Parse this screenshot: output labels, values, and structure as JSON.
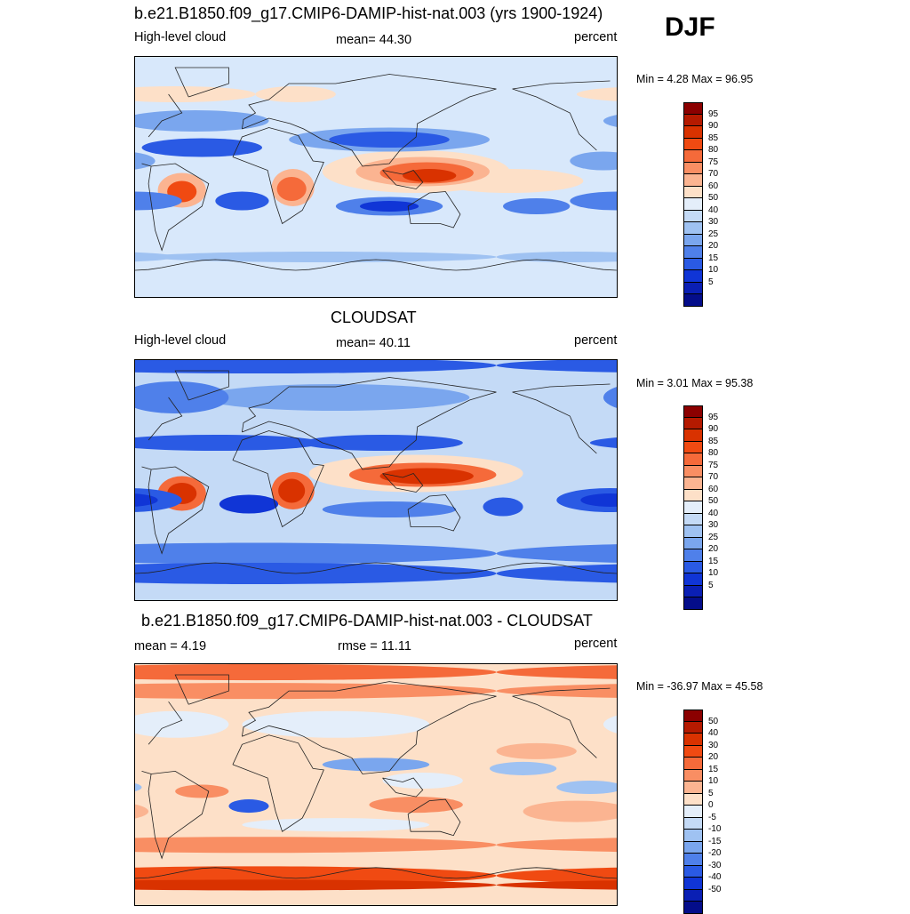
{
  "season": "DJF",
  "panels": [
    {
      "title": "b.e21.B1850.f09_g17.CMIP6-DAMIP-hist-nat.003 (yrs 1900-1924)",
      "left_label": "High-level cloud",
      "center_label": "mean=  44.30",
      "units": "percent",
      "minmax": "Min =   4.28 Max =  96.95",
      "colorbar": {
        "colors": [
          "#8b0000",
          "#b51a00",
          "#d93200",
          "#f04a12",
          "#f56a3a",
          "#f98e63",
          "#fbb491",
          "#fde0c8",
          "#e4eefa",
          "#c4daf6",
          "#9fc2f2",
          "#7aa6ee",
          "#4f80ea",
          "#2a5ae4",
          "#1035d6",
          "#0a1fb4",
          "#040d8a"
        ],
        "labels": [
          "95",
          "90",
          "85",
          "80",
          "75",
          "70",
          "60",
          "50",
          "40",
          "30",
          "25",
          "20",
          "15",
          "10",
          "5"
        ]
      },
      "field": {
        "background": "#d8e8fb",
        "features": [
          {
            "color": "#fde0c8",
            "shape": "ellipse",
            "center": [
              30,
              62
            ],
            "radius": [
              30,
              6
            ]
          },
          {
            "color": "#fde0c8",
            "shape": "ellipse",
            "center": [
              -60,
              62
            ],
            "radius": [
              60,
              6
            ]
          },
          {
            "color": "#fde0c8",
            "shape": "ellipse",
            "center": [
              -170,
              -3
            ],
            "radius": [
              55,
              9
            ]
          },
          {
            "color": "#fde0c8",
            "shape": "ellipse",
            "center": [
              120,
              4
            ],
            "radius": [
              70,
              16
            ]
          },
          {
            "color": "#fbb491",
            "shape": "ellipse",
            "center": [
              125,
              4
            ],
            "radius": [
              50,
              11
            ]
          },
          {
            "color": "#f56a3a",
            "shape": "ellipse",
            "center": [
              128,
              3
            ],
            "radius": [
              35,
              8
            ]
          },
          {
            "color": "#d93200",
            "shape": "ellipse",
            "center": [
              130,
              1
            ],
            "radius": [
              20,
              5
            ]
          },
          {
            "color": "#fbb491",
            "shape": "ellipse",
            "center": [
              28,
              -8
            ],
            "radius": [
              16,
              14
            ]
          },
          {
            "color": "#f56a3a",
            "shape": "ellipse",
            "center": [
              27,
              -9
            ],
            "radius": [
              11,
              9
            ]
          },
          {
            "color": "#fbb491",
            "shape": "ellipse",
            "center": [
              -55,
              -10
            ],
            "radius": [
              18,
              13
            ]
          },
          {
            "color": "#f04a12",
            "shape": "ellipse",
            "center": [
              -55,
              -11
            ],
            "radius": [
              11,
              8
            ]
          },
          {
            "color": "#7aa6ee",
            "shape": "ellipse",
            "center": [
              100,
              28
            ],
            "radius": [
              75,
              9
            ]
          },
          {
            "color": "#2a5ae4",
            "shape": "ellipse",
            "center": [
              100,
              28
            ],
            "radius": [
              45,
              6
            ]
          },
          {
            "color": "#7aa6ee",
            "shape": "ellipse",
            "center": [
              -45,
              42
            ],
            "radius": [
              55,
              8
            ]
          },
          {
            "color": "#2a5ae4",
            "shape": "ellipse",
            "center": [
              -40,
              22
            ],
            "radius": [
              45,
              7
            ]
          },
          {
            "color": "#7aa6ee",
            "shape": "ellipse",
            "center": [
              -100,
              12
            ],
            "radius": [
              25,
              7
            ]
          },
          {
            "color": "#4f80ea",
            "shape": "ellipse",
            "center": [
              100,
              -22
            ],
            "radius": [
              40,
              7
            ]
          },
          {
            "color": "#1035d6",
            "shape": "ellipse",
            "center": [
              100,
              -22
            ],
            "radius": [
              22,
              4
            ]
          },
          {
            "color": "#4f80ea",
            "shape": "ellipse",
            "center": [
              -90,
              -18
            ],
            "radius": [
              35,
              7
            ]
          },
          {
            "color": "#2a5ae4",
            "shape": "ellipse",
            "center": [
              -10,
              -18
            ],
            "radius": [
              20,
              7
            ]
          },
          {
            "color": "#4f80ea",
            "shape": "ellipse",
            "center": [
              -150,
              -22
            ],
            "radius": [
              25,
              6
            ]
          },
          {
            "color": "#9fc2f2",
            "shape": "ellipse",
            "center": [
              50,
              -60
            ],
            "radius": [
              130,
              4
            ]
          },
          {
            "color": "#9fc2f2",
            "shape": "ellipse",
            "center": [
              -120,
              -60
            ],
            "radius": [
              60,
              4
            ]
          }
        ]
      }
    },
    {
      "title": "CLOUDSAT",
      "left_label": "High-level cloud",
      "center_label": "mean=  40.11",
      "units": "percent",
      "minmax": "Min =   3.01 Max =  95.38",
      "colorbar": {
        "colors": [
          "#8b0000",
          "#b51a00",
          "#d93200",
          "#f04a12",
          "#f56a3a",
          "#f98e63",
          "#fbb491",
          "#fde0c8",
          "#e4eefa",
          "#c4daf6",
          "#9fc2f2",
          "#7aa6ee",
          "#4f80ea",
          "#2a5ae4",
          "#1035d6",
          "#0a1fb4",
          "#040d8a"
        ],
        "labels": [
          "95",
          "90",
          "85",
          "80",
          "75",
          "70",
          "60",
          "50",
          "40",
          "30",
          "25",
          "20",
          "15",
          "10",
          "5"
        ]
      },
      "field": {
        "background": "#c4daf6",
        "features": [
          {
            "color": "#2a5ae4",
            "shape": "ellipse",
            "center": [
              0,
              86
            ],
            "radius": [
              180,
              6
            ]
          },
          {
            "color": "#7aa6ee",
            "shape": "ellipse",
            "center": [
              60,
              62
            ],
            "radius": [
              100,
              10
            ]
          },
          {
            "color": "#4f80ea",
            "shape": "ellipse",
            "center": [
              -60,
              62
            ],
            "radius": [
              40,
              12
            ]
          },
          {
            "color": "#2a5ae4",
            "shape": "ellipse",
            "center": [
              95,
              28
            ],
            "radius": [
              60,
              6
            ]
          },
          {
            "color": "#2a5ae4",
            "shape": "ellipse",
            "center": [
              -30,
              28
            ],
            "radius": [
              80,
              6
            ]
          },
          {
            "color": "#fde0c8",
            "shape": "ellipse",
            "center": [
              120,
              5
            ],
            "radius": [
              80,
              14
            ]
          },
          {
            "color": "#f56a3a",
            "shape": "ellipse",
            "center": [
              125,
              4
            ],
            "radius": [
              55,
              9
            ]
          },
          {
            "color": "#d93200",
            "shape": "ellipse",
            "center": [
              128,
              3
            ],
            "radius": [
              35,
              6
            ]
          },
          {
            "color": "#f56a3a",
            "shape": "ellipse",
            "center": [
              28,
              -8
            ],
            "radius": [
              16,
              14
            ]
          },
          {
            "color": "#d93200",
            "shape": "ellipse",
            "center": [
              27,
              -8
            ],
            "radius": [
              10,
              9
            ]
          },
          {
            "color": "#f56a3a",
            "shape": "ellipse",
            "center": [
              -55,
              -10
            ],
            "radius": [
              18,
              13
            ]
          },
          {
            "color": "#d93200",
            "shape": "ellipse",
            "center": [
              -55,
              -10
            ],
            "radius": [
              11,
              8
            ]
          },
          {
            "color": "#4f80ea",
            "shape": "ellipse",
            "center": [
              100,
              -22
            ],
            "radius": [
              50,
              6
            ]
          },
          {
            "color": "#2a5ae4",
            "shape": "ellipse",
            "center": [
              -95,
              -15
            ],
            "radius": [
              40,
              9
            ]
          },
          {
            "color": "#1035d6",
            "shape": "ellipse",
            "center": [
              -95,
              -15
            ],
            "radius": [
              22,
              5
            ]
          },
          {
            "color": "#1035d6",
            "shape": "ellipse",
            "center": [
              -5,
              -18
            ],
            "radius": [
              22,
              7
            ]
          },
          {
            "color": "#2a5ae4",
            "shape": "ellipse",
            "center": [
              -175,
              -20
            ],
            "radius": [
              15,
              7
            ]
          },
          {
            "color": "#4f80ea",
            "shape": "ellipse",
            "center": [
              0,
              -55
            ],
            "radius": [
              180,
              8
            ]
          },
          {
            "color": "#2a5ae4",
            "shape": "ellipse",
            "center": [
              0,
              -70
            ],
            "radius": [
              180,
              8
            ]
          }
        ]
      }
    },
    {
      "title": "b.e21.B1850.f09_g17.CMIP6-DAMIP-hist-nat.003 - CLOUDSAT",
      "left_label": "mean =   4.19",
      "center_label": "rmse =  11.11",
      "units": "percent",
      "minmax": "Min = -36.97 Max =  45.58",
      "colorbar": {
        "colors": [
          "#8b0000",
          "#b51a00",
          "#d93200",
          "#f04a12",
          "#f56a3a",
          "#f98e63",
          "#fbb491",
          "#fde0c8",
          "#e4eefa",
          "#c4daf6",
          "#9fc2f2",
          "#7aa6ee",
          "#4f80ea",
          "#2a5ae4",
          "#1035d6",
          "#0a1fb4",
          "#040d8a"
        ],
        "labels": [
          "50",
          "40",
          "30",
          "20",
          "15",
          "10",
          "5",
          "0",
          "-5",
          "-10",
          "-15",
          "-20",
          "-30",
          "-40",
          "-50"
        ]
      },
      "field": {
        "background": "#fde0c8",
        "features": [
          {
            "color": "#f56a3a",
            "shape": "ellipse",
            "center": [
              0,
              84
            ],
            "radius": [
              180,
              6
            ]
          },
          {
            "color": "#f98e63",
            "shape": "ellipse",
            "center": [
              0,
              70
            ],
            "radius": [
              180,
              6
            ]
          },
          {
            "color": "#e4eefa",
            "shape": "ellipse",
            "center": [
              60,
              45
            ],
            "radius": [
              70,
              10
            ]
          },
          {
            "color": "#e4eefa",
            "shape": "ellipse",
            "center": [
              -60,
              45
            ],
            "radius": [
              40,
              10
            ]
          },
          {
            "color": "#9fc2f2",
            "shape": "ellipse",
            "center": [
              -160,
              12
            ],
            "radius": [
              25,
              5
            ]
          },
          {
            "color": "#7aa6ee",
            "shape": "ellipse",
            "center": [
              90,
              15
            ],
            "radius": [
              40,
              5
            ]
          },
          {
            "color": "#fbb491",
            "shape": "ellipse",
            "center": [
              -150,
              25
            ],
            "radius": [
              30,
              6
            ]
          },
          {
            "color": "#9fc2f2",
            "shape": "ellipse",
            "center": [
              -110,
              -2
            ],
            "radius": [
              25,
              5
            ]
          },
          {
            "color": "#2a5ae4",
            "shape": "ellipse",
            "center": [
              -5,
              -16
            ],
            "radius": [
              15,
              5
            ]
          },
          {
            "color": "#e4eefa",
            "shape": "ellipse",
            "center": [
              125,
              3
            ],
            "radius": [
              30,
              6
            ]
          },
          {
            "color": "#f98e63",
            "shape": "ellipse",
            "center": [
              -40,
              -5
            ],
            "radius": [
              20,
              5
            ]
          },
          {
            "color": "#f98e63",
            "shape": "ellipse",
            "center": [
              120,
              -15
            ],
            "radius": [
              35,
              6
            ]
          },
          {
            "color": "#fbb491",
            "shape": "ellipse",
            "center": [
              -120,
              -20
            ],
            "radius": [
              40,
              8
            ]
          },
          {
            "color": "#e4eefa",
            "shape": "ellipse",
            "center": [
              60,
              -30
            ],
            "radius": [
              70,
              5
            ]
          },
          {
            "color": "#f98e63",
            "shape": "ellipse",
            "center": [
              0,
              -45
            ],
            "radius": [
              180,
              6
            ]
          },
          {
            "color": "#f04a12",
            "shape": "ellipse",
            "center": [
              0,
              -68
            ],
            "radius": [
              180,
              7
            ]
          },
          {
            "color": "#d93200",
            "shape": "ellipse",
            "center": [
              0,
              -75
            ],
            "radius": [
              180,
              4
            ]
          }
        ]
      }
    }
  ]
}
